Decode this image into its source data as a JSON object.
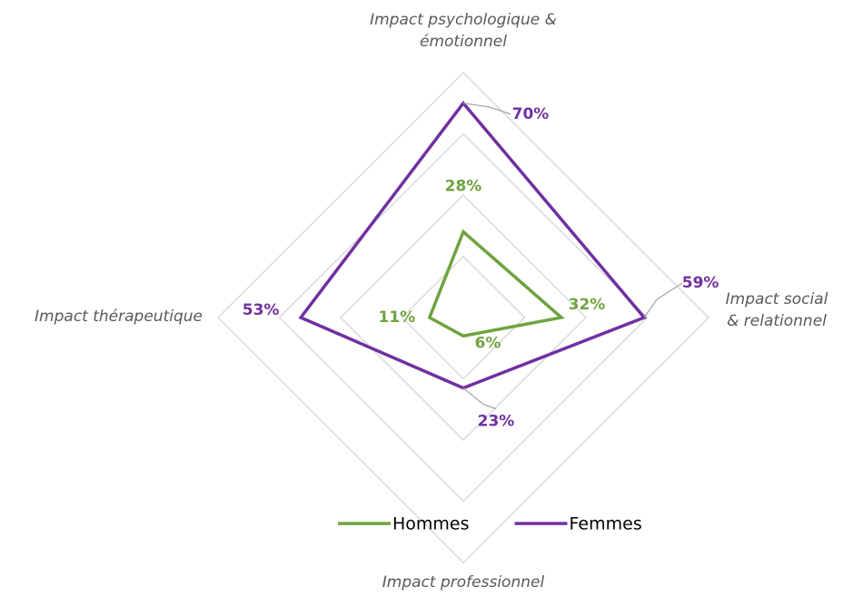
{
  "chart_data": {
    "type": "radar",
    "categories": [
      "Impact psychologique & émotionnel",
      "Impact social & relationnel",
      "Impact professionnel",
      "Impact thérapeutique"
    ],
    "series": [
      {
        "name": "Hommes",
        "color": "#70a33f",
        "values": [
          28,
          32,
          6,
          11
        ],
        "value_labels": [
          "28%",
          "32%",
          "6%",
          "11%"
        ]
      },
      {
        "name": "Femmes",
        "color": "#7030a0",
        "values": [
          70,
          59,
          23,
          53
        ],
        "value_labels": [
          "70%",
          "59%",
          "23%",
          "53%"
        ]
      }
    ],
    "ylim": [
      0,
      80
    ],
    "yticks": [
      0,
      20,
      40,
      60,
      80
    ],
    "grid": true,
    "legend": "bottom"
  }
}
